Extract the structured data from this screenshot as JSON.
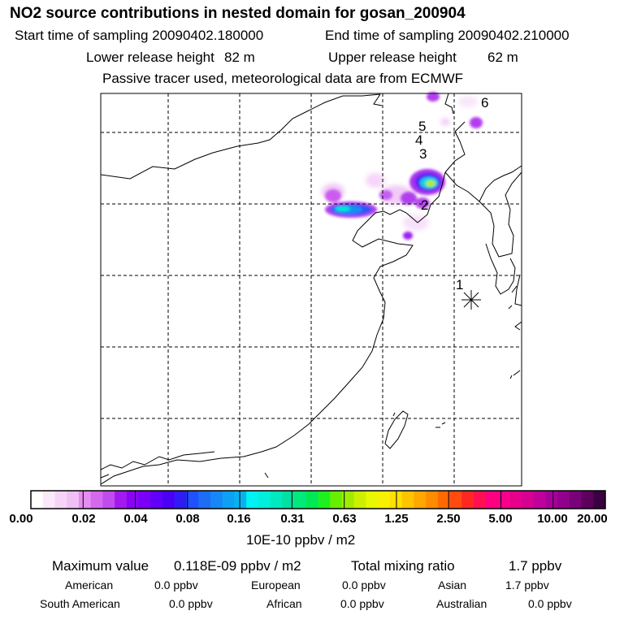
{
  "header": {
    "title": "NO2 source contributions in nested domain for gosan_200904",
    "start_label": "Start time of sampling 20090402.180000",
    "end_label": "End time of sampling 20090402.210000",
    "lower_label": "Lower release height",
    "lower_value": "82 m",
    "upper_label": "Upper release height",
    "upper_value": "62 m",
    "note": "Passive tracer used, meteorological data are from ECMWF"
  },
  "chart_data": {
    "type": "heatmap",
    "title": "NO2 source contributions in nested domain for gosan_200904",
    "station_marker": "1",
    "trajectory_labels": [
      "1",
      "2",
      "3",
      "4",
      "5",
      "6"
    ],
    "colorbar": {
      "ticks": [
        "0.00",
        "0.02",
        "0.04",
        "0.08",
        "0.16",
        "0.31",
        "0.63",
        "1.25",
        "2.50",
        "5.00",
        "10.00",
        "20.00"
      ],
      "unit": "10E-10 ppbv / m2",
      "colors": [
        "#ffffff",
        "#fbe9fb",
        "#f6d4f8",
        "#f0c0f4",
        "#e38ef0",
        "#d569ee",
        "#c14cee",
        "#a31af0",
        "#8a05f6",
        "#7a00f8",
        "#6100f8",
        "#4a00f4",
        "#2f1cf5",
        "#2050ff",
        "#1e6df7",
        "#1687f6",
        "#0da0f3",
        "#05b4ee",
        "#00f2f2",
        "#00eedc",
        "#00e8c0",
        "#00e0a0",
        "#00ea7a",
        "#00e854",
        "#1ef020",
        "#66f000",
        "#a0ec00",
        "#ccf000",
        "#e8f800",
        "#f8f000",
        "#ffe000",
        "#ffc400",
        "#ffa800",
        "#ff8c00",
        "#ff6a00",
        "#ff4a10",
        "#ff2820",
        "#ff1050",
        "#ff0080",
        "#f8008c",
        "#e8008c",
        "#d80090",
        "#c0009a",
        "#a8009a",
        "#90008a",
        "#780078",
        "#5c005c",
        "#3a0040"
      ]
    },
    "max_value_label": "Maximum value",
    "max_value": "0.118E-09 ppbv / m2",
    "total_label": "Total mixing ratio",
    "total_value": "1.7 ppbv"
  },
  "contributions": [
    {
      "label": "American",
      "value": "0.0 ppbv"
    },
    {
      "label": "European",
      "value": "0.0 ppbv"
    },
    {
      "label": "Asian",
      "value": "1.7 ppbv"
    },
    {
      "label": "South American",
      "value": "0.0 ppbv"
    },
    {
      "label": "African",
      "value": "0.0 ppbv"
    },
    {
      "label": "Australian",
      "value": "0.0 ppbv"
    }
  ]
}
